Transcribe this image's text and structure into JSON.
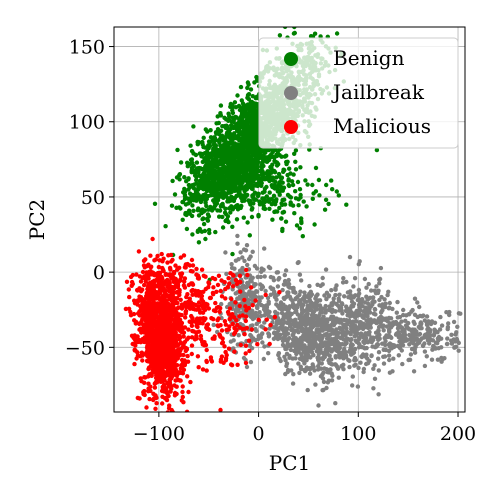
{
  "chart_data": {
    "type": "scatter",
    "xlabel": "PC1",
    "ylabel": "PC2",
    "xlim": [
      -145,
      207
    ],
    "ylim": [
      -93,
      163
    ],
    "x_ticks": [
      -100,
      0,
      100,
      200
    ],
    "y_ticks": [
      -50,
      0,
      50,
      100,
      150
    ],
    "x_tick_labels": [
      "−100",
      "0",
      "100",
      "200"
    ],
    "y_tick_labels": [
      "−50",
      "0",
      "50",
      "100",
      "150"
    ],
    "grid": true,
    "legend_position": "top-right",
    "series": [
      {
        "name": "Benign",
        "color": "#008000",
        "clusters": [
          {
            "cx": -15,
            "cy": 82,
            "sx": 22,
            "sy": 20,
            "rho": 0.55,
            "n": 1400
          },
          {
            "cx": 25,
            "cy": 115,
            "sx": 18,
            "sy": 18,
            "rho": 0.4,
            "n": 450
          },
          {
            "cx": -45,
            "cy": 65,
            "sx": 18,
            "sy": 14,
            "rho": 0.3,
            "n": 300
          },
          {
            "cx": 10,
            "cy": 55,
            "sx": 30,
            "sy": 12,
            "rho": 0.0,
            "n": 250
          },
          {
            "cx": 55,
            "cy": 140,
            "sx": 12,
            "sy": 10,
            "rho": 0.0,
            "n": 80
          }
        ]
      },
      {
        "name": "Jailbreak",
        "color": "#808080",
        "clusters": [
          {
            "cx": 55,
            "cy": -42,
            "sx": 25,
            "sy": 14,
            "rho": -0.3,
            "n": 700
          },
          {
            "cx": 105,
            "cy": -32,
            "sx": 15,
            "sy": 14,
            "rho": 0.0,
            "n": 300
          },
          {
            "cx": 160,
            "cy": -42,
            "sx": 20,
            "sy": 9,
            "rho": 0.0,
            "n": 250
          },
          {
            "cx": -15,
            "cy": -20,
            "sx": 10,
            "sy": 16,
            "rho": 0.0,
            "n": 200
          },
          {
            "cx": 20,
            "cy": -25,
            "sx": 25,
            "sy": 15,
            "rho": 0.0,
            "n": 200
          }
        ]
      },
      {
        "name": "Malicious",
        "color": "#ff0000",
        "clusters": [
          {
            "cx": -95,
            "cy": -48,
            "sx": 10,
            "sy": 18,
            "rho": 0.0,
            "n": 900
          },
          {
            "cx": -108,
            "cy": -25,
            "sx": 9,
            "sy": 16,
            "rho": 0.0,
            "n": 350
          },
          {
            "cx": -60,
            "cy": -30,
            "sx": 22,
            "sy": 18,
            "rho": 0.0,
            "n": 250
          },
          {
            "cx": -88,
            "cy": -5,
            "sx": 15,
            "sy": 8,
            "rho": 0.0,
            "n": 100
          },
          {
            "cx": -20,
            "cy": -30,
            "sx": 20,
            "sy": 15,
            "rho": 0.0,
            "n": 60
          }
        ]
      }
    ]
  }
}
